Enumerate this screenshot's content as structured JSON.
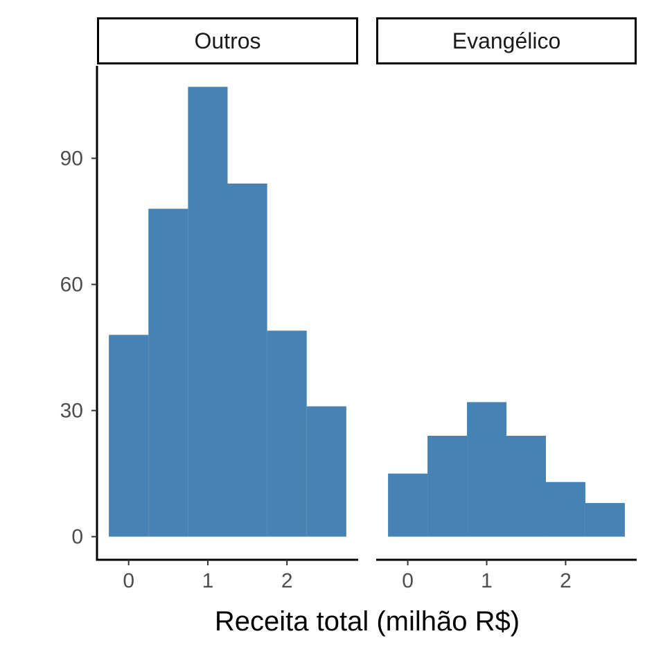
{
  "chart_data": {
    "type": "bar",
    "subtype": "histogram-faceted",
    "title": "",
    "xlabel": "Receita total (milhão R$)",
    "ylabel": "",
    "bar_color": "#4682B4",
    "bin_width": 0.5,
    "xlim": [
      -0.4,
      2.9
    ],
    "ylim": [
      -5.5,
      112
    ],
    "x_ticks": [
      0,
      1,
      2
    ],
    "x_tick_labels": [
      "0",
      "1",
      "2"
    ],
    "y_ticks": [
      0,
      30,
      60,
      90
    ],
    "y_tick_labels": [
      "0",
      "30",
      "60",
      "90"
    ],
    "grid": false,
    "legend": "none",
    "facets": [
      {
        "label": "Outros",
        "bins": [
          {
            "x0": -0.25,
            "x1": 0.25,
            "count": 48
          },
          {
            "x0": 0.25,
            "x1": 0.75,
            "count": 78
          },
          {
            "x0": 0.75,
            "x1": 1.25,
            "count": 107
          },
          {
            "x0": 1.25,
            "x1": 1.75,
            "count": 84
          },
          {
            "x0": 1.75,
            "x1": 2.25,
            "count": 49
          },
          {
            "x0": 2.25,
            "x1": 2.75,
            "count": 31
          }
        ]
      },
      {
        "label": "Evangélico",
        "bins": [
          {
            "x0": -0.25,
            "x1": 0.25,
            "count": 15
          },
          {
            "x0": 0.25,
            "x1": 0.75,
            "count": 24
          },
          {
            "x0": 0.75,
            "x1": 1.25,
            "count": 32
          },
          {
            "x0": 1.25,
            "x1": 1.75,
            "count": 24
          },
          {
            "x0": 1.75,
            "x1": 2.25,
            "count": 13
          },
          {
            "x0": 2.25,
            "x1": 2.75,
            "count": 8
          }
        ]
      }
    ]
  }
}
